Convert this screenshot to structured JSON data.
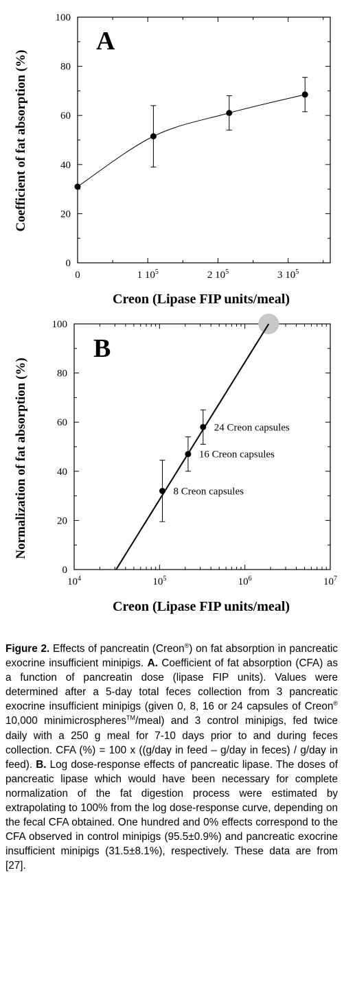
{
  "chart_data": [
    {
      "type": "scatter",
      "panel_label": "A",
      "xlabel": "Creon (Lipase FIP units/meal)",
      "ylabel": "Coefficient of fat absorption (%)",
      "xlim": [
        0,
        360000
      ],
      "ylim": [
        0,
        100
      ],
      "x_ticks": [
        {
          "value": 0,
          "mant": "0",
          "exp": ""
        },
        {
          "value": 100000,
          "mant": "1 10",
          "exp": "5"
        },
        {
          "value": 200000,
          "mant": "2 10",
          "exp": "5"
        },
        {
          "value": 300000,
          "mant": "3 10",
          "exp": "5"
        }
      ],
      "y_ticks": [
        0,
        20,
        40,
        60,
        80,
        100
      ],
      "fit_curve": true,
      "points": [
        {
          "x": 0,
          "y": 31,
          "err": 0
        },
        {
          "x": 108000,
          "y": 51.5,
          "err": 12.5
        },
        {
          "x": 216000,
          "y": 61,
          "err": 7
        },
        {
          "x": 324000,
          "y": 68.5,
          "err": 7
        }
      ]
    },
    {
      "type": "scatter",
      "panel_label": "B",
      "xlabel": "Creon (Lipase FIP units/meal)",
      "ylabel": "Normalization of fat absorption (%)",
      "xscale": "log",
      "xlim": [
        10000,
        10000000
      ],
      "ylim": [
        0,
        100
      ],
      "x_ticks": [
        {
          "value": 10000,
          "mant": "10",
          "exp": "4"
        },
        {
          "value": 100000,
          "mant": "10",
          "exp": "5"
        },
        {
          "value": 1000000,
          "mant": "10",
          "exp": "6"
        },
        {
          "value": 10000000,
          "mant": "10",
          "exp": "7"
        }
      ],
      "y_ticks": [
        0,
        20,
        40,
        60,
        80,
        100
      ],
      "fit_line": [
        [
          31000,
          0
        ],
        [
          1900000,
          100
        ]
      ],
      "highlight": {
        "x": 1900000,
        "y": 100
      },
      "points": [
        {
          "x": 108000,
          "y": 32,
          "err": 12.5,
          "label": "8 Creon capsules"
        },
        {
          "x": 216000,
          "y": 47,
          "err": 7,
          "label": "16 Creon capsules"
        },
        {
          "x": 324000,
          "y": 58,
          "err": 7,
          "label": "24 Creon capsules"
        }
      ]
    }
  ],
  "caption": {
    "figure_label": "Figure 2.",
    "intro": " Effects of pancreatin (Creon",
    "reg": "®",
    "intro2": ") on fat absorption in pancreatic exocrine insufficient minipigs. ",
    "a_label": "A.",
    "a_text1": " Coefficient of fat absorption (CFA) as a function of pancreatin dose (lipase FIP units). Values were determined after a 5-day total feces collection from 3 pancreatic exocrine insufficient minipigs (given 0, 8, 16 or 24 capsules of Creon",
    "reg2": "®",
    "a_text2": " 10,000 minimicro­spheres",
    "tm": "TM",
    "a_text3": "/meal) and 3 control minipigs, fed twice daily with a 250 g meal for 7-10 days prior to and during feces collection. CFA (%) = 100 x ((g/day in feed – g/day in feces) / g/day in feed). ",
    "b_label": "B.",
    "b_text": " Log dose-response effects of pancreatic lipase. The doses of pancreatic lipase which would have been necessary for complete normalization of the fat digestion process were estimated by extrapolating to 100% from the log dose-response curve, depending on the fecal CFA obtained. One hundred and 0% effects correspond to the CFA observed in control minipigs (95.5±0.9%) and pancreatic exocrine insufficient minipigs (31.5±8.1%), respectively. These data are from [27]."
  }
}
